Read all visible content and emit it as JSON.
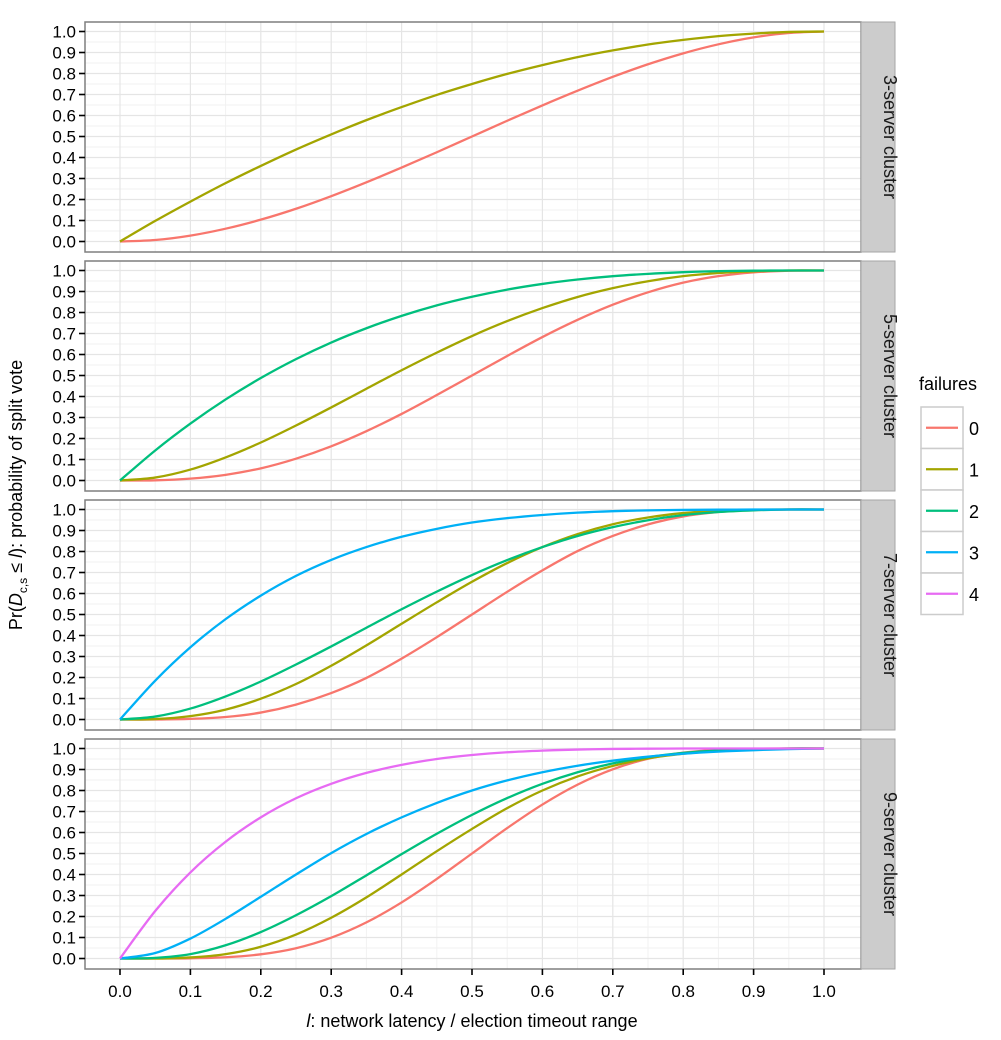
{
  "chart_data": {
    "type": "line",
    "xlabel": "l: network latency / election timeout range",
    "xlabel_var": "l",
    "xlabel_rest": ": network latency / election timeout range",
    "ylabel": "Pr(D_{c,s} ≤ l): probability of split vote",
    "ylabel_parts": {
      "pre": "Pr(",
      "var": "D",
      "sub": "c,s",
      "mid": " ≤ ",
      "var2": "l",
      "post": "): probability of split vote"
    },
    "xlim": [
      0,
      1
    ],
    "ylim": [
      0,
      1
    ],
    "x_ticks": [
      "0.0",
      "0.1",
      "0.2",
      "0.3",
      "0.4",
      "0.5",
      "0.6",
      "0.7",
      "0.8",
      "0.9",
      "1.0"
    ],
    "y_ticks": [
      "0.0",
      "0.1",
      "0.2",
      "0.3",
      "0.4",
      "0.5",
      "0.6",
      "0.7",
      "0.8",
      "0.9",
      "1.0"
    ],
    "grid": true,
    "legend": {
      "title": "failures",
      "position": "right",
      "entries": [
        {
          "label": "0",
          "color": "#F8766D"
        },
        {
          "label": "1",
          "color": "#A3A500"
        },
        {
          "label": "2",
          "color": "#00BF7D"
        },
        {
          "label": "3",
          "color": "#00B0F6"
        },
        {
          "label": "4",
          "color": "#E76BF3"
        }
      ]
    },
    "x": [
      0.0,
      0.05,
      0.1,
      0.15,
      0.2,
      0.25,
      0.3,
      0.35,
      0.4,
      0.45,
      0.5,
      0.55,
      0.6,
      0.65,
      0.7,
      0.75,
      0.8,
      0.85,
      0.9,
      0.95,
      1.0
    ],
    "panels": [
      {
        "title": "3-server cluster",
        "series": [
          {
            "failures": "0",
            "values": [
              0.0,
              0.007,
              0.028,
              0.061,
              0.104,
              0.156,
              0.216,
              0.282,
              0.352,
              0.425,
              0.5,
              0.575,
              0.648,
              0.718,
              0.784,
              0.844,
              0.896,
              0.939,
              0.972,
              0.993,
              1.0
            ]
          },
          {
            "failures": "1",
            "values": [
              0.0,
              0.098,
              0.19,
              0.278,
              0.36,
              0.438,
              0.51,
              0.578,
              0.64,
              0.698,
              0.75,
              0.798,
              0.84,
              0.878,
              0.91,
              0.938,
              0.96,
              0.978,
              0.99,
              0.998,
              1.0
            ]
          }
        ]
      },
      {
        "title": "5-server cluster",
        "series": [
          {
            "failures": "0",
            "values": [
              0.0,
              0.001,
              0.009,
              0.027,
              0.058,
              0.104,
              0.163,
              0.235,
              0.317,
              0.407,
              0.5,
              0.593,
              0.683,
              0.765,
              0.837,
              0.896,
              0.942,
              0.973,
              0.991,
              0.999,
              1.0
            ]
          },
          {
            "failures": "1",
            "values": [
              0.0,
              0.014,
              0.052,
              0.11,
              0.181,
              0.262,
              0.348,
              0.437,
              0.525,
              0.609,
              0.688,
              0.759,
              0.821,
              0.874,
              0.916,
              0.949,
              0.973,
              0.988,
              0.996,
              1.0,
              1.0
            ]
          },
          {
            "failures": "2",
            "values": [
              0.0,
              0.143,
              0.271,
              0.386,
              0.488,
              0.578,
              0.657,
              0.725,
              0.784,
              0.834,
              0.875,
              0.909,
              0.936,
              0.957,
              0.973,
              0.984,
              0.992,
              0.997,
              0.999,
              1.0,
              1.0
            ]
          }
        ]
      },
      {
        "title": "7-server cluster",
        "series": [
          {
            "failures": "0",
            "values": [
              0.0,
              0.0,
              0.003,
              0.012,
              0.033,
              0.071,
              0.126,
              0.198,
              0.29,
              0.392,
              0.5,
              0.608,
              0.71,
              0.802,
              0.874,
              0.929,
              0.967,
              0.988,
              0.997,
              1.0,
              1.0
            ]
          },
          {
            "failures": "1",
            "values": [
              0.0,
              0.002,
              0.016,
              0.047,
              0.099,
              0.169,
              0.256,
              0.353,
              0.456,
              0.558,
              0.656,
              0.745,
              0.821,
              0.883,
              0.93,
              0.962,
              0.983,
              0.994,
              0.999,
              1.0,
              1.0
            ]
          },
          {
            "failures": "2",
            "values": [
              0.0,
              0.014,
              0.052,
              0.11,
              0.181,
              0.262,
              0.348,
              0.437,
              0.525,
              0.609,
              0.688,
              0.759,
              0.821,
              0.874,
              0.916,
              0.949,
              0.973,
              0.988,
              0.996,
              1.0,
              1.0
            ]
          },
          {
            "failures": "3",
            "values": [
              0.0,
              0.185,
              0.344,
              0.478,
              0.59,
              0.684,
              0.76,
              0.821,
              0.87,
              0.908,
              0.938,
              0.959,
              0.974,
              0.985,
              0.992,
              0.996,
              0.998,
              0.999,
              1.0,
              1.0,
              1.0
            ]
          }
        ]
      },
      {
        "title": "9-server cluster",
        "series": [
          {
            "failures": "0",
            "values": [
              0.0,
              0.0,
              0.001,
              0.006,
              0.02,
              0.049,
              0.099,
              0.172,
              0.267,
              0.379,
              0.5,
              0.621,
              0.733,
              0.828,
              0.901,
              0.951,
              0.98,
              0.994,
              0.999,
              1.0,
              1.0
            ]
          },
          {
            "failures": "1",
            "values": [
              0.0,
              0.0,
              0.005,
              0.021,
              0.056,
              0.114,
              0.194,
              0.291,
              0.4,
              0.511,
              0.617,
              0.716,
              0.8,
              0.867,
              0.917,
              0.953,
              0.975,
              0.989,
              0.997,
              1.0,
              1.0
            ]
          },
          {
            "failures": "2",
            "values": [
              0.0,
              0.003,
              0.021,
              0.063,
              0.126,
              0.206,
              0.297,
              0.396,
              0.497,
              0.594,
              0.684,
              0.764,
              0.832,
              0.887,
              0.929,
              0.959,
              0.979,
              0.991,
              0.997,
              1.0,
              1.0
            ]
          },
          {
            "failures": "3",
            "values": [
              0.0,
              0.026,
              0.095,
              0.189,
              0.294,
              0.4,
              0.502,
              0.593,
              0.672,
              0.741,
              0.8,
              0.848,
              0.887,
              0.918,
              0.942,
              0.961,
              0.975,
              0.985,
              0.992,
              0.997,
              1.0
            ]
          },
          {
            "failures": "4",
            "values": [
              0.0,
              0.226,
              0.41,
              0.556,
              0.672,
              0.763,
              0.832,
              0.884,
              0.922,
              0.95,
              0.969,
              0.982,
              0.99,
              0.995,
              0.998,
              0.999,
              1.0,
              1.0,
              1.0,
              1.0,
              1.0
            ]
          }
        ]
      }
    ]
  }
}
